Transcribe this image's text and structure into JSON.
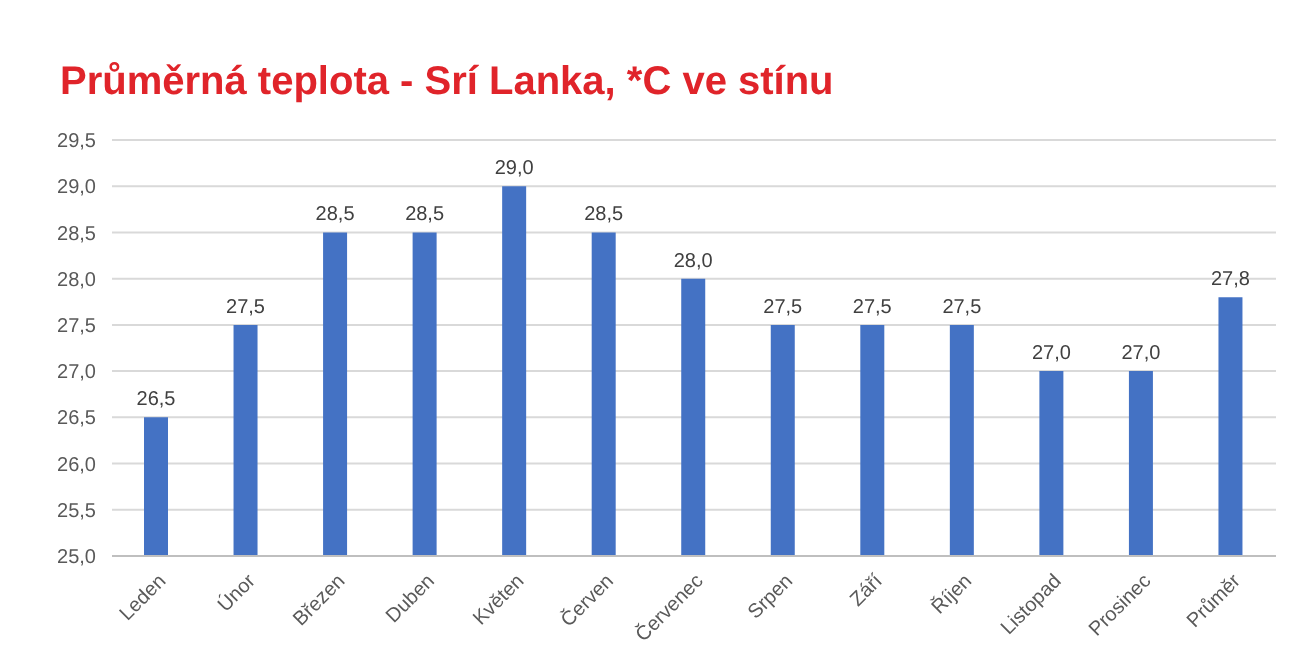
{
  "chart_data": {
    "type": "bar",
    "title": "Průměrná teplota - Srí Lanka, *C ve stínu",
    "categories": [
      "Leden",
      "Únor",
      "Březen",
      "Duben",
      "Květen",
      "Červen",
      "Červenec",
      "Srpen",
      "Září",
      "Říjen",
      "Listopad",
      "Prosinec",
      "Průměr"
    ],
    "values": [
      26.5,
      27.5,
      28.5,
      28.5,
      29.0,
      28.5,
      28.0,
      27.5,
      27.5,
      27.5,
      27.0,
      27.0,
      27.8
    ],
    "value_labels": [
      "26,5",
      "27,5",
      "28,5",
      "28,5",
      "29,0",
      "28,5",
      "28,0",
      "27,5",
      "27,5",
      "27,5",
      "27,0",
      "27,0",
      "27,8"
    ],
    "color": "#4472c4",
    "ylim": [
      25,
      29.5
    ],
    "yticks": [
      {
        "value": 25,
        "label": "25,0"
      },
      {
        "value": 25.5,
        "label": "25,5"
      },
      {
        "value": 26,
        "label": "26,0"
      },
      {
        "value": 26.5,
        "label": "26,5"
      },
      {
        "value": 27,
        "label": "27,0"
      },
      {
        "value": 27.5,
        "label": "27,5"
      },
      {
        "value": 28,
        "label": "28,0"
      },
      {
        "value": 28.5,
        "label": "28,5"
      },
      {
        "value": 29,
        "label": "29,0"
      },
      {
        "value": 29.5,
        "label": "29,5"
      }
    ],
    "grid": "y",
    "legend": false
  }
}
